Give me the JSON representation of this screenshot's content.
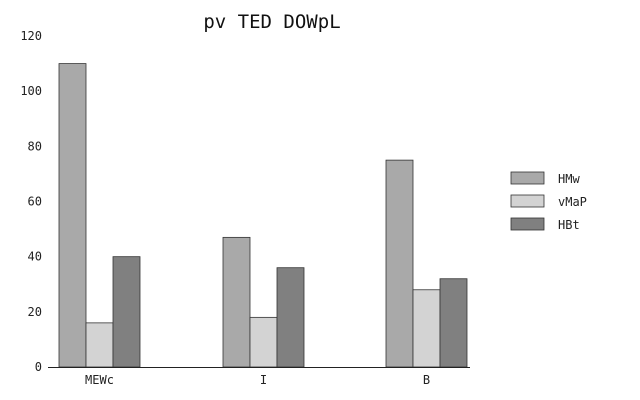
{
  "chart_data": {
    "type": "bar",
    "title": "pv TED DOWpL",
    "xlabel": "",
    "ylabel": "",
    "categories": [
      "MEWc",
      "I",
      "B"
    ],
    "series": [
      {
        "name": "HMw",
        "values": [
          110,
          47,
          75
        ],
        "color": "#a9a9a9"
      },
      {
        "name": "vMaP",
        "values": [
          16,
          18,
          28
        ],
        "color": "#d3d3d3"
      },
      {
        "name": "HBt",
        "values": [
          40,
          36,
          32
        ],
        "color": "#808080"
      }
    ],
    "ylim": [
      0,
      120
    ],
    "yticks": [
      0,
      20,
      40,
      60,
      80,
      100,
      120
    ],
    "grid": false,
    "legend": "right"
  }
}
